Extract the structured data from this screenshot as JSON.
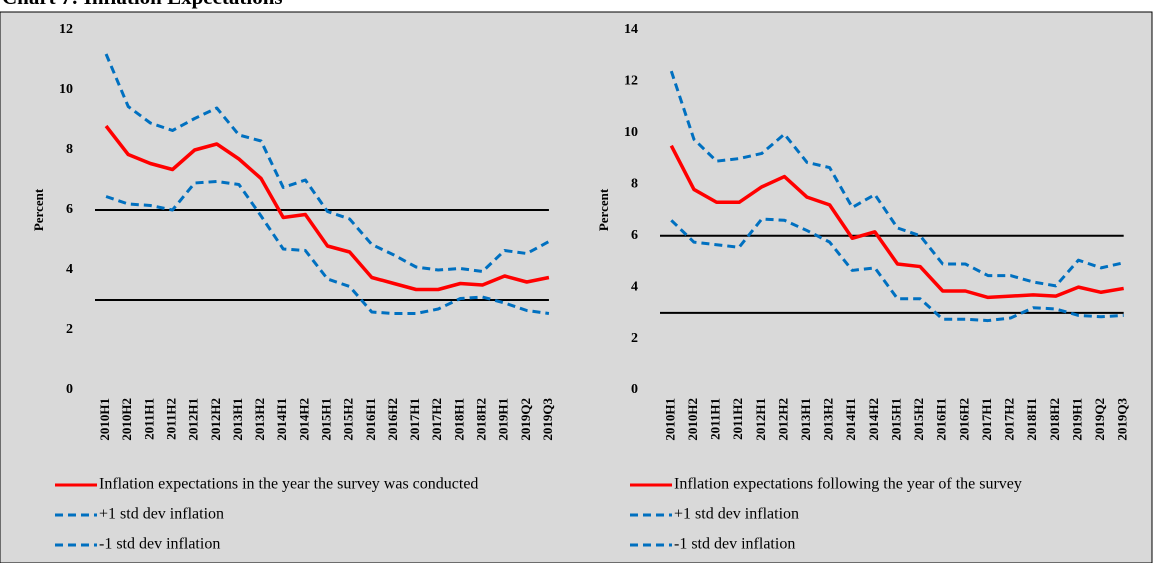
{
  "title": "Chart 7: Inflation Expectations",
  "chart_data": [
    {
      "type": "line",
      "y_label": "Percent",
      "categories": [
        "2010H1",
        "2010H2",
        "2011H1",
        "2011H2",
        "2012H1",
        "2012H2",
        "2013H1",
        "2013H2",
        "2014H1",
        "2014H2",
        "2015H1",
        "2015H2",
        "2016H1",
        "2016H2",
        "2017H1",
        "2017H2",
        "2018H1",
        "2018H2",
        "2019H1",
        "2019Q2",
        "2019Q3"
      ],
      "ylim": [
        0,
        12
      ],
      "yticks": [
        0,
        2,
        4,
        6,
        8,
        10,
        12
      ],
      "reference_lines": [
        6,
        3
      ],
      "reference_color": "#000000",
      "series": [
        {
          "name": "Inflation expectations in the year the survey was conducted",
          "color": "#ff0000",
          "dash": false,
          "values": [
            8.8,
            7.85,
            7.55,
            7.35,
            8.0,
            8.2,
            7.7,
            7.05,
            5.75,
            5.85,
            4.8,
            4.6,
            3.75,
            3.55,
            3.35,
            3.35,
            3.55,
            3.5,
            3.8,
            3.6,
            3.75
          ]
        },
        {
          "name": "+1 std dev inflation",
          "color": "#0070c0",
          "dash": true,
          "values": [
            11.2,
            9.45,
            8.9,
            8.65,
            9.05,
            9.4,
            8.5,
            8.3,
            6.75,
            7.0,
            5.95,
            5.7,
            4.85,
            4.5,
            4.1,
            4.0,
            4.05,
            3.95,
            4.65,
            4.55,
            4.95
          ]
        },
        {
          "name": "-1 std dev inflation",
          "color": "#0070c0",
          "dash": true,
          "values": [
            6.45,
            6.2,
            6.15,
            6.0,
            6.9,
            6.95,
            6.85,
            5.8,
            4.7,
            4.65,
            3.7,
            3.45,
            2.6,
            2.55,
            2.55,
            2.7,
            3.05,
            3.1,
            2.9,
            2.65,
            2.55
          ]
        }
      ]
    },
    {
      "type": "line",
      "y_label": "Percent",
      "categories": [
        "2010H1",
        "2010H2",
        "2011H1",
        "2011H2",
        "2012H1",
        "2012H2",
        "2013H1",
        "2013H2",
        "2014H1",
        "2014H2",
        "2015H1",
        "2015H2",
        "2016H1",
        "2016H2",
        "2017H1",
        "2017H2",
        "2018H1",
        "2018H2",
        "2019H1",
        "2019Q2",
        "2019Q3"
      ],
      "ylim": [
        0,
        14
      ],
      "yticks": [
        0,
        2,
        4,
        6,
        8,
        10,
        12,
        14
      ],
      "reference_lines": [
        6,
        3
      ],
      "reference_color": "#000000",
      "series": [
        {
          "name": "Inflation expectations following the year of the survey",
          "color": "#ff0000",
          "dash": false,
          "values": [
            9.5,
            7.8,
            7.3,
            7.3,
            7.9,
            8.3,
            7.5,
            7.2,
            5.9,
            6.15,
            4.9,
            4.8,
            3.85,
            3.85,
            3.6,
            3.65,
            3.7,
            3.65,
            4.0,
            3.8,
            3.95
          ]
        },
        {
          "name": "+1 std dev inflation",
          "color": "#0070c0",
          "dash": true,
          "values": [
            12.4,
            9.75,
            8.9,
            9.0,
            9.2,
            9.95,
            8.85,
            8.65,
            7.1,
            7.6,
            6.3,
            6.0,
            4.9,
            4.9,
            4.45,
            4.45,
            4.2,
            4.05,
            5.05,
            4.75,
            4.95
          ]
        },
        {
          "name": "-1 std dev inflation",
          "color": "#0070c0",
          "dash": true,
          "values": [
            6.6,
            5.75,
            5.65,
            5.55,
            6.65,
            6.6,
            6.2,
            5.75,
            4.65,
            4.75,
            3.55,
            3.55,
            2.75,
            2.75,
            2.7,
            2.8,
            3.2,
            3.15,
            2.9,
            2.85,
            2.9
          ]
        }
      ]
    }
  ]
}
